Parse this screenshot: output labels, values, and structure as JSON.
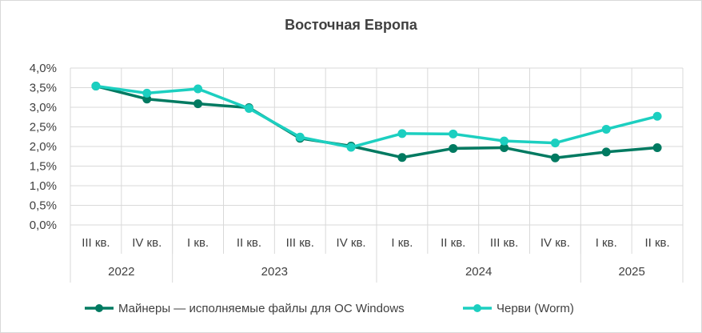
{
  "chart_data": {
    "type": "line",
    "title": "Восточная Европа",
    "y_ticks": [
      "0,0%",
      "0,5%",
      "1,0%",
      "1,5%",
      "2,0%",
      "2,5%",
      "3,0%",
      "3,5%",
      "4,0%"
    ],
    "ylim": [
      0,
      4.0
    ],
    "y_unit": "%",
    "grid": true,
    "legend_position": "bottom",
    "categories": [
      "III кв.",
      "IV кв.",
      "I кв.",
      "II кв.",
      "III кв.",
      "IV кв.",
      "I кв.",
      "II кв.",
      "III кв.",
      "IV кв.",
      "I кв.",
      "II кв."
    ],
    "year_groups": [
      {
        "label": "2022",
        "span": 2
      },
      {
        "label": "2023",
        "span": 4
      },
      {
        "label": "2024",
        "span": 4
      },
      {
        "label": "2025",
        "span": 2
      }
    ],
    "series": [
      {
        "name": "Майнеры — исполняемые файлы для ОС Windows",
        "color": "#007a61",
        "values": [
          3.54,
          3.21,
          3.09,
          2.99,
          2.21,
          2.01,
          1.72,
          1.95,
          1.97,
          1.71,
          1.86,
          1.97
        ]
      },
      {
        "name": "Черви (Worm)",
        "color": "#1ccfc0",
        "values": [
          3.54,
          3.36,
          3.47,
          2.97,
          2.24,
          1.98,
          2.33,
          2.32,
          2.14,
          2.09,
          2.44,
          2.77
        ]
      }
    ]
  }
}
